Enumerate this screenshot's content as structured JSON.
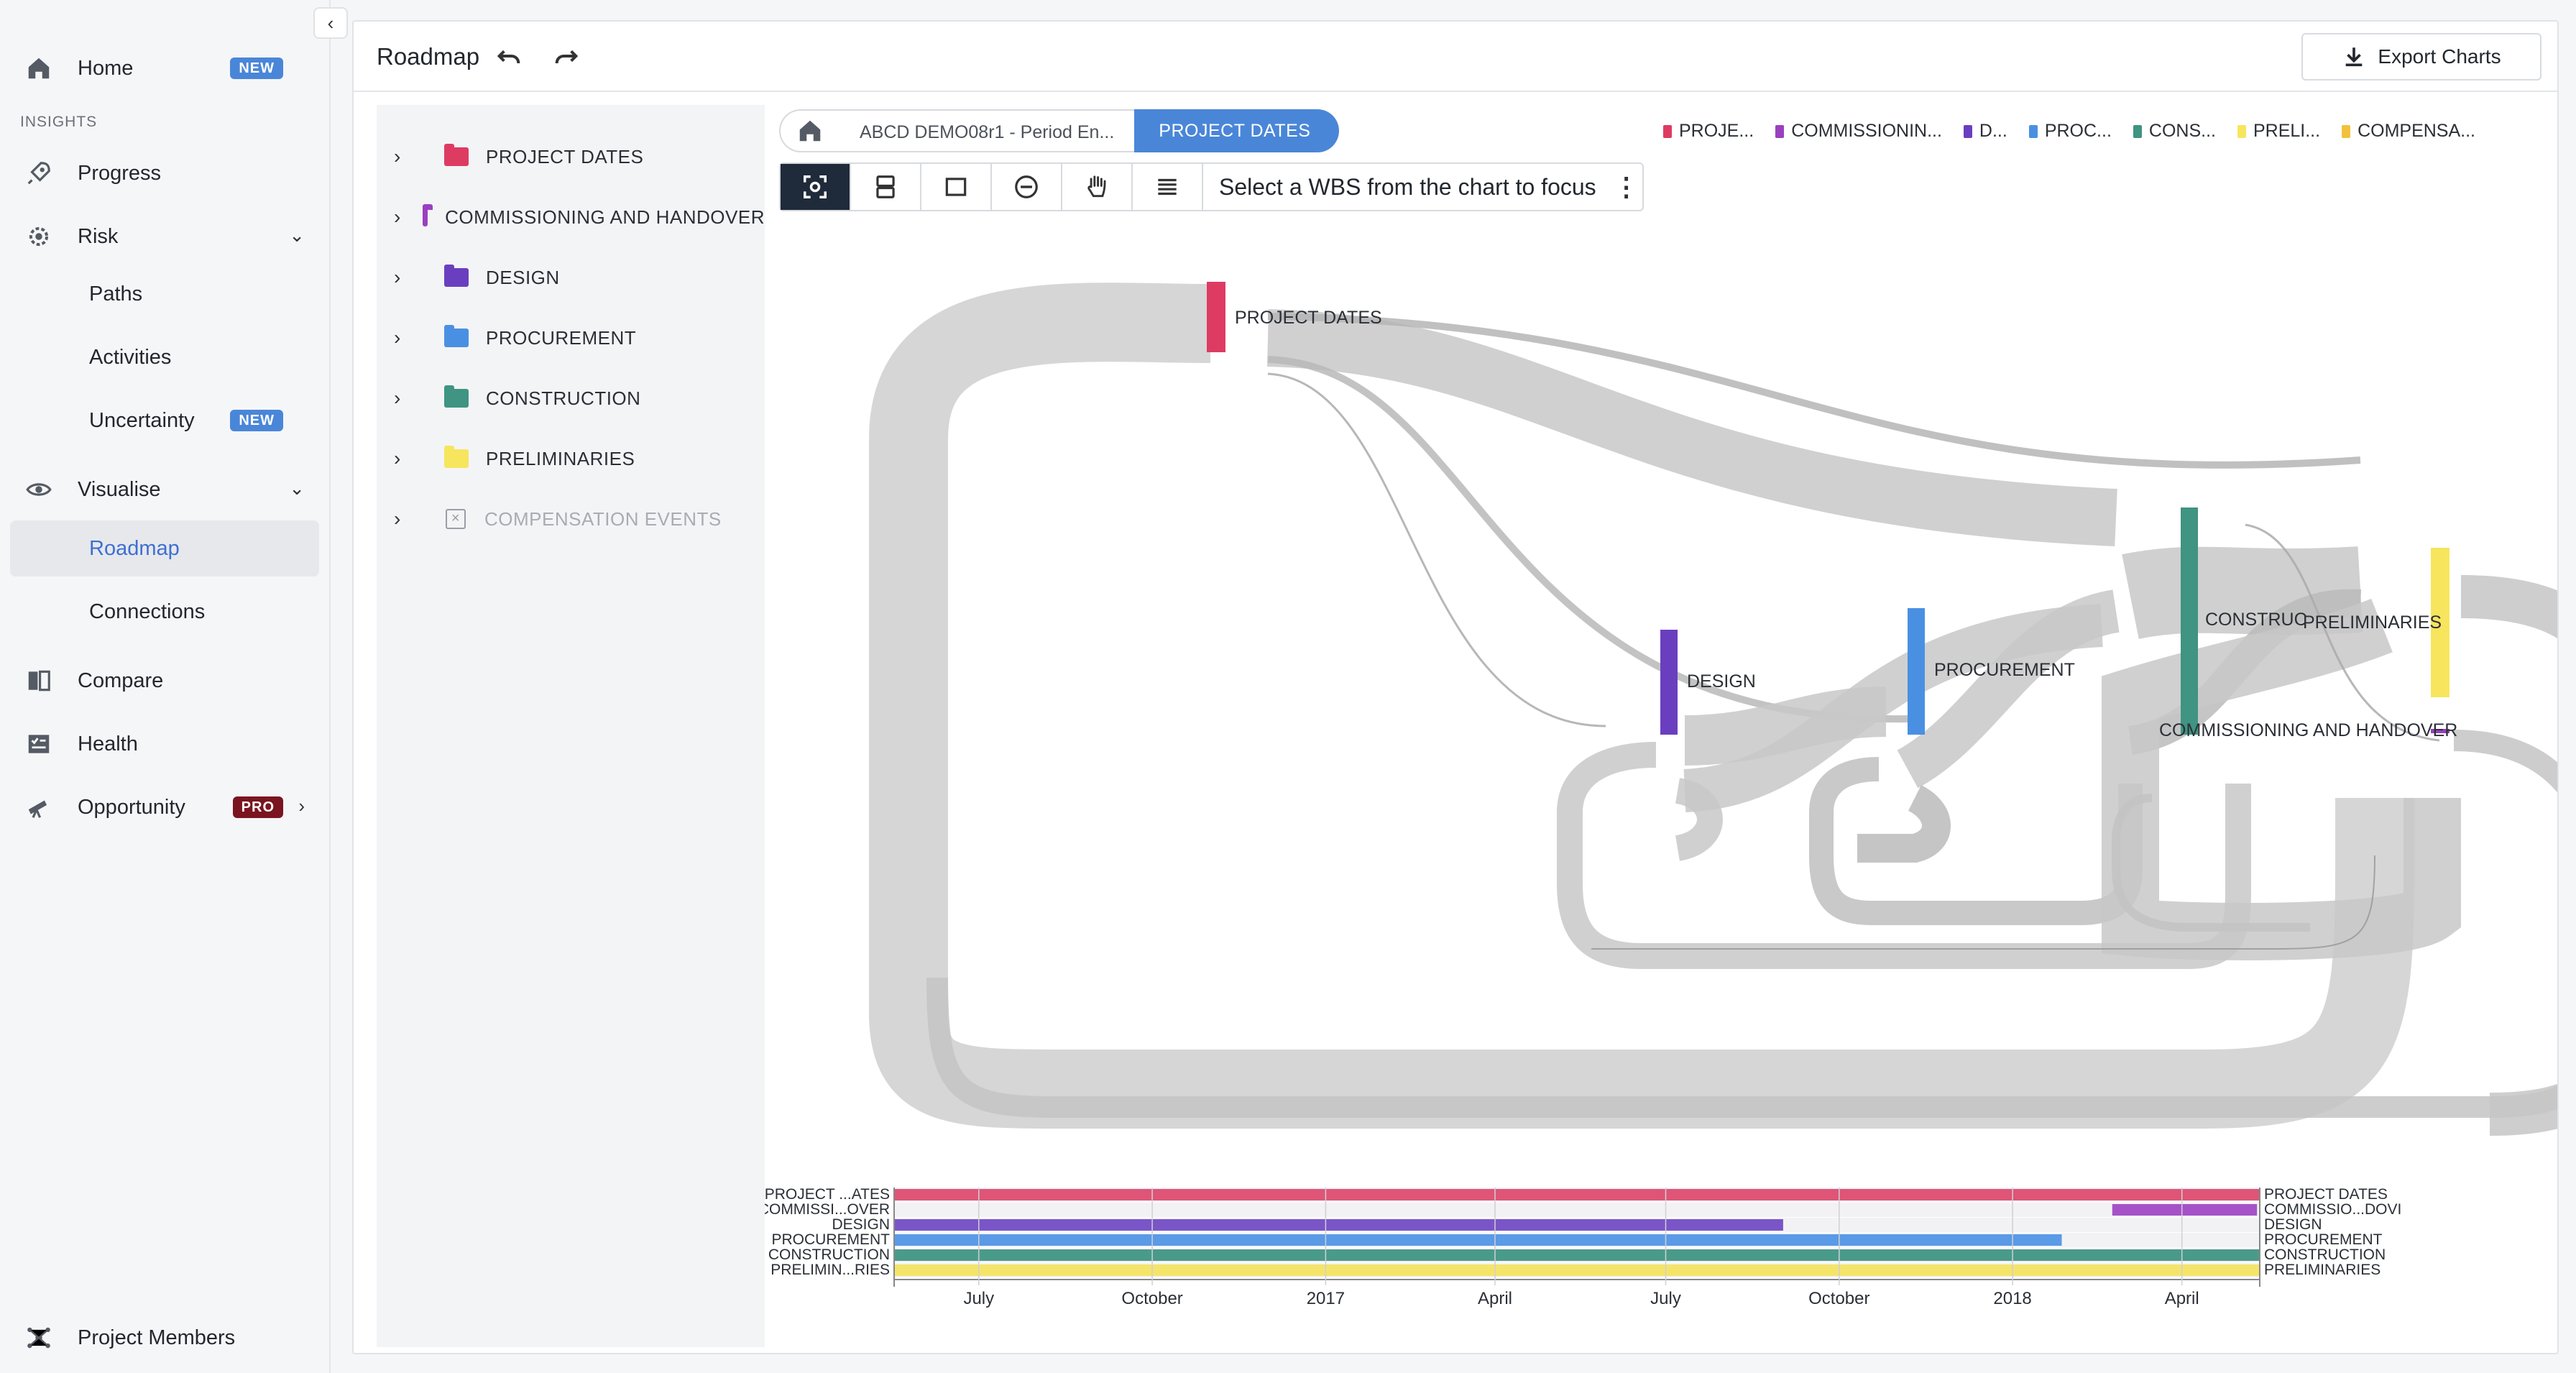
{
  "sidebar": {
    "home": {
      "label": "Home",
      "badge": "NEW"
    },
    "section_insights": "INSIGHTS",
    "progress": {
      "label": "Progress"
    },
    "risk": {
      "label": "Risk"
    },
    "risk_children": [
      "Paths",
      "Activities",
      "Uncertainty"
    ],
    "uncertainty_badge": "NEW",
    "visualise": {
      "label": "Visualise"
    },
    "visualise_children": [
      "Roadmap",
      "Connections"
    ],
    "compare": {
      "label": "Compare"
    },
    "health": {
      "label": "Health"
    },
    "opportunity": {
      "label": "Opportunity",
      "badge": "PRO"
    },
    "project_members": {
      "label": "Project Members"
    }
  },
  "header": {
    "title": "Roadmap",
    "export_label": "Export Charts"
  },
  "tree": {
    "items": [
      {
        "label": "PROJECT DATES",
        "color": "#de3b63"
      },
      {
        "label": "COMMISSIONING AND HANDOVER",
        "color": "#9a3fc0"
      },
      {
        "label": "DESIGN",
        "color": "#6a3fbf"
      },
      {
        "label": "PROCUREMENT",
        "color": "#4a90e2"
      },
      {
        "label": "CONSTRUCTION",
        "color": "#3f9482"
      },
      {
        "label": "PRELIMINARIES",
        "color": "#f7e55e"
      },
      {
        "label": "COMPENSATION EVENTS",
        "color": ""
      }
    ]
  },
  "breadcrumb": {
    "middle": "ABCD DEMO08r1 - Period En...",
    "active": "PROJECT DATES"
  },
  "legend": [
    {
      "label": "PROJE...",
      "color": "#de3b63"
    },
    {
      "label": "COMMISSIONIN...",
      "color": "#9a3fc0"
    },
    {
      "label": "D...",
      "color": "#6a3fbf"
    },
    {
      "label": "PROC...",
      "color": "#4a90e2"
    },
    {
      "label": "CONS...",
      "color": "#3f9482"
    },
    {
      "label": "PRELI...",
      "color": "#f7e55e"
    },
    {
      "label": "COMPENSA...",
      "color": "#f2c23c"
    }
  ],
  "toolbar": {
    "focus_text": "Select a WBS from the chart to focus"
  },
  "sankey": {
    "nodes": [
      {
        "label": "PROJECT DATES",
        "color": "#de3b63"
      },
      {
        "label": "DESIGN",
        "color": "#6a3fbf"
      },
      {
        "label": "PROCUREMENT",
        "color": "#4a90e2"
      },
      {
        "label": "CONSTRUC",
        "color": "#3f9482"
      },
      {
        "label": "PRELIMINARIES",
        "color": "#f7e55e"
      },
      {
        "label": "COMMISSIONING AND HANDOVER",
        "color": "#9a3fc0"
      }
    ]
  },
  "timeline": {
    "rows": [
      {
        "left": "PROJECT ...ATES",
        "right": "PROJECT DATES",
        "color": "#de5577",
        "start": 0.0,
        "end": 1.0
      },
      {
        "left": "COMMISSI...OVER",
        "right": "COMMISSIO...DOVI",
        "color": "#a552c8",
        "start": 0.892,
        "end": 0.998
      },
      {
        "left": "DESIGN",
        "right": "DESIGN",
        "color": "#7a55c8",
        "start": 0.0,
        "end": 0.651
      },
      {
        "left": "PROCUREMENT",
        "right": "PROCUREMENT",
        "color": "#5a9ae6",
        "start": 0.0,
        "end": 0.855
      },
      {
        "left": "CONSTRUCTION",
        "right": "CONSTRUCTION",
        "color": "#4a9a8a",
        "start": 0.0,
        "end": 1.0
      },
      {
        "left": "PRELIMIN...RIES",
        "right": "PRELIMINARIES",
        "color": "#f5e46a",
        "start": 0.0,
        "end": 1.0
      }
    ],
    "ticks": [
      "July",
      "October",
      "2017",
      "April",
      "July",
      "October",
      "2018",
      "April"
    ],
    "tick_fractions": [
      0.062,
      0.189,
      0.316,
      0.44,
      0.565,
      0.692,
      0.819,
      0.943
    ]
  }
}
